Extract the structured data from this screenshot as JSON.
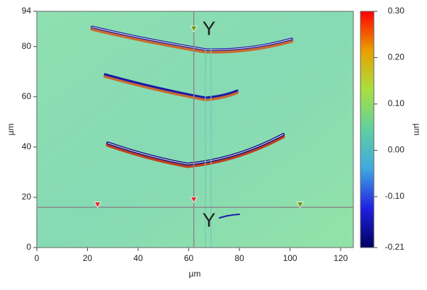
{
  "chart_data": {
    "type": "image",
    "xlabel": "µm",
    "ylabel": "µm",
    "xlim": [
      0,
      125
    ],
    "xticks": [
      0,
      20,
      40,
      60,
      80,
      100,
      120
    ],
    "ylim": [
      0,
      94
    ],
    "yticks": [
      0,
      20,
      40,
      60,
      80,
      94
    ],
    "colorbar": {
      "label": "µm",
      "lim": [
        -0.21,
        0.3
      ],
      "ticks": [
        {
          "value": 0.3,
          "label": "0.30"
        },
        {
          "value": 0.2,
          "label": "0.20"
        },
        {
          "value": 0.1,
          "label": "0.10"
        },
        {
          "value": 0.0,
          "label": "0.00"
        },
        {
          "value": -0.1,
          "label": "-0.10"
        },
        {
          "value": -0.21,
          "label": "-0.21"
        }
      ],
      "colors": [
        "#ff0000",
        "#e8a000",
        "#a8e040",
        "#60d0a0",
        "#40a8e0",
        "#2020e0",
        "#000060"
      ]
    },
    "cursor": {
      "x": 62,
      "y": 16,
      "color": "#8a8a8a",
      "labels": [
        "Y",
        "Y"
      ]
    },
    "markers": [
      {
        "x": 62,
        "y": 87,
        "color": "#6a9a10"
      },
      {
        "x": 24,
        "y": 17,
        "color": "#e03030"
      },
      {
        "x": 62,
        "y": 19,
        "color": "#e03030"
      },
      {
        "x": 104,
        "y": 17,
        "color": "#6a9a10"
      }
    ]
  }
}
